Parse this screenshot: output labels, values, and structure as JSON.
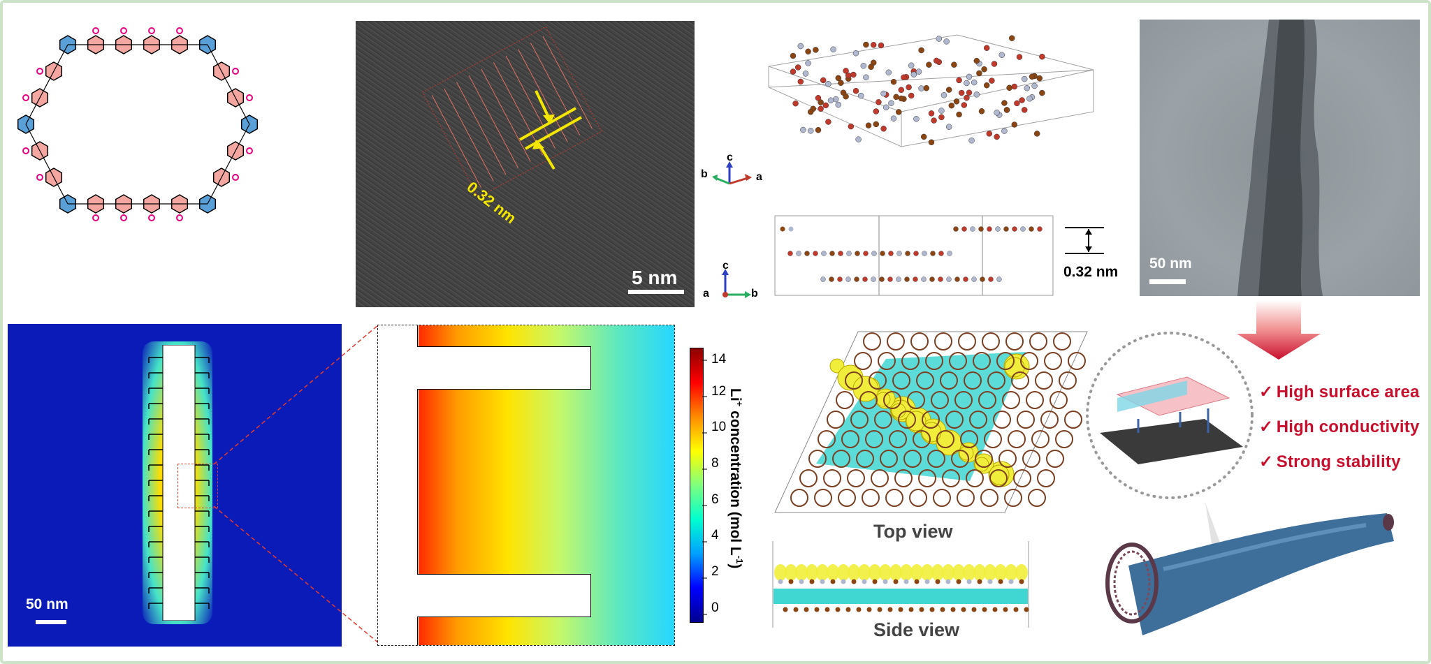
{
  "hrtem": {
    "spacing_label": "0.32 nm",
    "scale_bar": "5 nm"
  },
  "axes_top": {
    "c": "c",
    "b": "b",
    "a": "a"
  },
  "axes_bottom": {
    "c": "c",
    "a": "a",
    "b": "b"
  },
  "side_structure": {
    "spacing_label": "0.32 nm"
  },
  "tem": {
    "scale_bar": "50 nm"
  },
  "simulation": {
    "scale_bar": "50 nm"
  },
  "colorbar": {
    "title_prefix": "Li",
    "title_sup": "+",
    "title_rest": " concentration (mol L",
    "title_unit_sup": "-1",
    "title_close": ")",
    "ticks": [
      "14",
      "12",
      "10",
      "8",
      "6",
      "4",
      "2",
      "0"
    ],
    "colors": [
      "#00008f",
      "#0000ff",
      "#00a0ff",
      "#00ffd0",
      "#7fff7f",
      "#ffff00",
      "#ff8c00",
      "#ff0000",
      "#8b0000"
    ]
  },
  "views": {
    "top": "Top view",
    "side": "Side view"
  },
  "benefits": [
    "High surface area",
    "High conductivity",
    "Strong stability"
  ],
  "check_mark": "✓",
  "accent": "#c8102e"
}
